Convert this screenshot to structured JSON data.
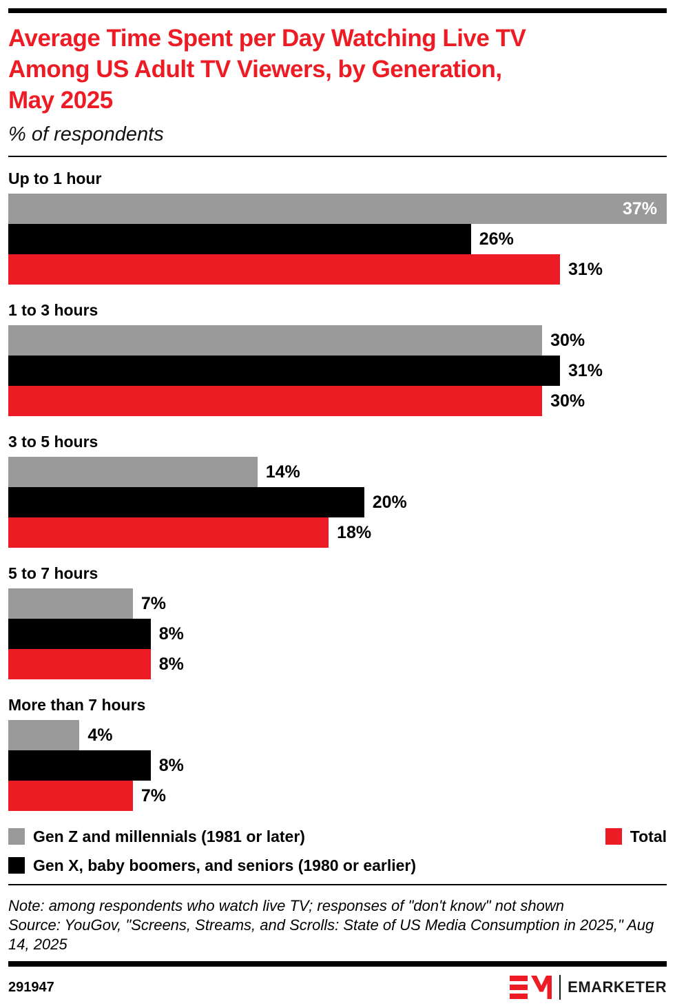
{
  "header": {
    "title_lines": [
      "Average Time Spent per Day Watching Live TV",
      "Among US Adult TV Viewers, by Generation,",
      "May 2025"
    ],
    "subtitle": "% of respondents"
  },
  "chart_data": {
    "type": "bar",
    "orientation": "horizontal",
    "title": "Average Time Spent per Day Watching Live TV Among US Adult TV Viewers, by Generation, May 2025",
    "subtitle": "% of respondents",
    "categories": [
      "Up to 1 hour",
      "1 to 3 hours",
      "3 to 5 hours",
      "5 to 7 hours",
      "More than 7 hours"
    ],
    "series": [
      {
        "name": "Gen Z and millennials (1981 or later)",
        "color": "#9A9A9A",
        "values": [
          37,
          30,
          14,
          7,
          4
        ]
      },
      {
        "name": "Gen X, baby boomers, and seniors (1980 or earlier)",
        "color": "#000000",
        "values": [
          26,
          31,
          20,
          8,
          8
        ]
      },
      {
        "name": "Total",
        "color": "#ED1C24",
        "values": [
          31,
          30,
          18,
          8,
          7
        ]
      }
    ],
    "xlim": [
      0,
      37
    ],
    "value_suffix": "%",
    "grid": false,
    "legend_position": "bottom",
    "data_labels": true
  },
  "notes": {
    "note": "Note: among respondents who watch live TV; responses of \"don't know\" not shown",
    "source": "Source: YouGov, \"Screens, Streams, and Scrolls: State of US Media Consumption in 2025,\" Aug 14, 2025"
  },
  "footer": {
    "chart_id": "291947",
    "brand": "EMARKETER"
  },
  "colors": {
    "accent_red": "#ED1C24",
    "bar_gray": "#9A9A9A",
    "bar_black": "#000000"
  }
}
